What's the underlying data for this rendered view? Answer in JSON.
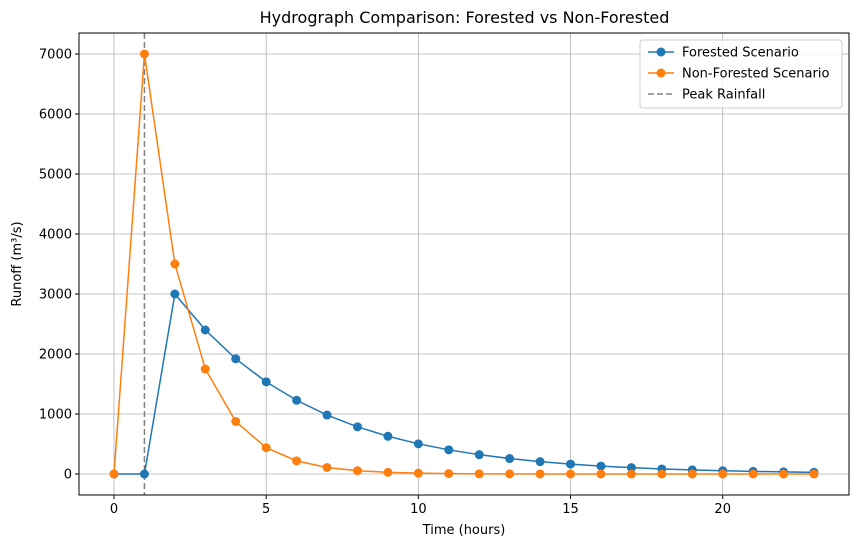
{
  "chart_data": {
    "type": "line",
    "title": "Hydrograph Comparison: Forested vs Non-Forested",
    "xlabel": "Time (hours)",
    "ylabel": "Runoff (m³/s)",
    "xlim": [
      -1.15,
      24.15
    ],
    "ylim": [
      -350,
      7350
    ],
    "x_ticks": [
      0,
      5,
      10,
      15,
      20
    ],
    "y_ticks": [
      0,
      1000,
      2000,
      3000,
      4000,
      5000,
      6000,
      7000
    ],
    "grid": true,
    "legend_position": "top-right",
    "x": [
      0,
      1,
      2,
      3,
      4,
      5,
      6,
      7,
      8,
      9,
      10,
      11,
      12,
      13,
      14,
      15,
      16,
      17,
      18,
      19,
      20,
      21,
      22,
      23
    ],
    "series": [
      {
        "name": "Forested Scenario",
        "color": "#1f77b4",
        "marker": "circle",
        "values": [
          0,
          0,
          3000,
          2400,
          1920,
          1536,
          1229,
          983,
          786,
          629,
          503,
          403,
          322,
          258,
          206,
          165,
          132,
          106,
          84,
          68,
          54,
          43,
          35,
          28
        ]
      },
      {
        "name": "Non-Forested Scenario",
        "color": "#ff7f0e",
        "marker": "circle",
        "values": [
          0,
          7000,
          3500,
          1750,
          875,
          438,
          219,
          109,
          55,
          27,
          14,
          7,
          3,
          2,
          1,
          0,
          0,
          0,
          0,
          0,
          0,
          0,
          0,
          0
        ]
      }
    ],
    "reference_lines": [
      {
        "name": "Peak Rainfall",
        "orientation": "vertical",
        "x": 1,
        "color": "#808080",
        "style": "dashed"
      }
    ]
  }
}
